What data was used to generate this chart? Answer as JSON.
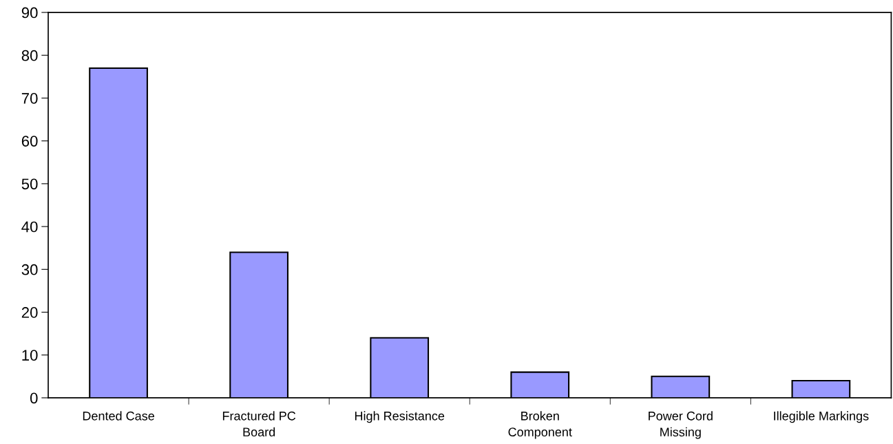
{
  "chart_data": {
    "type": "bar",
    "categories": [
      "Dented Case",
      "Fractured PC\nBoard",
      "High Resistance",
      "Broken\nComponent",
      "Power Cord\nMissing",
      "Illegible Markings"
    ],
    "values": [
      77,
      34,
      14,
      6,
      5,
      4
    ],
    "color": "#9999ff",
    "ylim": [
      0,
      90
    ],
    "yticks": [
      0,
      10,
      20,
      30,
      40,
      50,
      60,
      70,
      80,
      90
    ],
    "grid": false,
    "legend": false
  }
}
